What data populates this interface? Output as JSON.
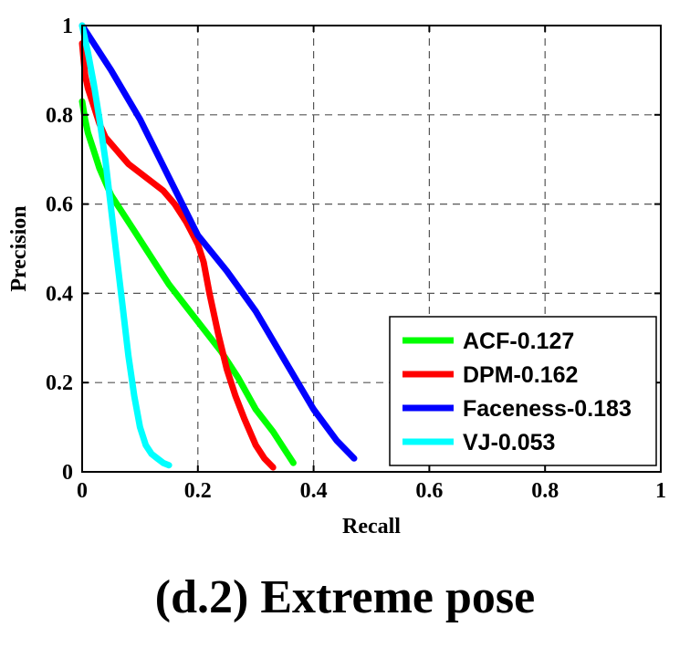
{
  "caption": "(d.2) Extreme pose",
  "chart_data": {
    "type": "line",
    "title": "",
    "xlabel": "Recall",
    "ylabel": "Precision",
    "xlim": [
      0,
      1
    ],
    "ylim": [
      0,
      1
    ],
    "xticks": [
      0,
      0.2,
      0.4,
      0.6,
      0.8,
      1
    ],
    "yticks": [
      0,
      0.2,
      0.4,
      0.6,
      0.8,
      1
    ],
    "xtick_labels": [
      "0",
      "0.2",
      "0.4",
      "0.6",
      "0.8",
      "1"
    ],
    "ytick_labels": [
      "0",
      "0.2",
      "0.4",
      "0.6",
      "0.8",
      "1"
    ],
    "grid": true,
    "legend_position": "bottom-right",
    "series": [
      {
        "name": "ACF-0.127",
        "color": "#00ff00",
        "x": [
          0.0,
          0.005,
          0.01,
          0.02,
          0.03,
          0.05,
          0.07,
          0.09,
          0.11,
          0.13,
          0.15,
          0.18,
          0.21,
          0.24,
          0.27,
          0.3,
          0.33,
          0.35,
          0.365
        ],
        "y": [
          0.83,
          0.79,
          0.76,
          0.72,
          0.68,
          0.62,
          0.58,
          0.54,
          0.5,
          0.46,
          0.42,
          0.37,
          0.32,
          0.27,
          0.21,
          0.14,
          0.09,
          0.05,
          0.02
        ]
      },
      {
        "name": "DPM-0.162",
        "color": "#ff0000",
        "x": [
          0.0,
          0.005,
          0.01,
          0.02,
          0.03,
          0.04,
          0.06,
          0.08,
          0.1,
          0.12,
          0.14,
          0.16,
          0.18,
          0.2,
          0.21,
          0.22,
          0.235,
          0.25,
          0.265,
          0.28,
          0.3,
          0.315,
          0.33
        ],
        "y": [
          0.96,
          0.89,
          0.86,
          0.82,
          0.78,
          0.75,
          0.72,
          0.69,
          0.67,
          0.65,
          0.63,
          0.6,
          0.56,
          0.51,
          0.47,
          0.4,
          0.31,
          0.23,
          0.17,
          0.12,
          0.06,
          0.03,
          0.01
        ]
      },
      {
        "name": "Faceness-0.183",
        "color": "#0000ff",
        "x": [
          0.0,
          0.05,
          0.1,
          0.15,
          0.2,
          0.25,
          0.3,
          0.35,
          0.4,
          0.44,
          0.47
        ],
        "y": [
          1.0,
          0.9,
          0.79,
          0.66,
          0.53,
          0.45,
          0.36,
          0.25,
          0.14,
          0.07,
          0.03
        ]
      },
      {
        "name": "VJ-0.053",
        "color": "#00ffff",
        "x": [
          0.0,
          0.01,
          0.02,
          0.03,
          0.04,
          0.05,
          0.06,
          0.07,
          0.08,
          0.09,
          0.1,
          0.11,
          0.12,
          0.13,
          0.14,
          0.15
        ],
        "y": [
          1.0,
          0.94,
          0.87,
          0.79,
          0.7,
          0.59,
          0.48,
          0.37,
          0.26,
          0.17,
          0.1,
          0.06,
          0.04,
          0.03,
          0.02,
          0.015
        ]
      }
    ]
  }
}
